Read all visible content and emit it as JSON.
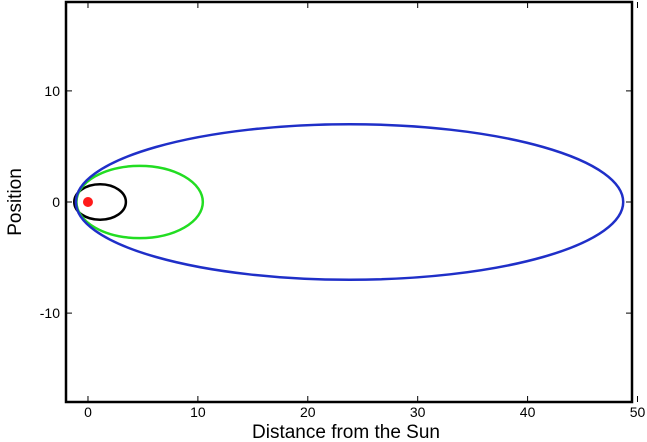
{
  "chart_data": {
    "type": "line",
    "title": "",
    "xlabel": "Distance from the Sun",
    "ylabel": "Position",
    "xlim": [
      -2,
      49.5
    ],
    "ylim": [
      -18,
      18
    ],
    "x_ticks": [
      0,
      10,
      20,
      30,
      40,
      50
    ],
    "y_ticks": [
      -10,
      0,
      10
    ],
    "grid": false,
    "sun": {
      "x": 0,
      "y": 0,
      "color": "#ff1a1a"
    },
    "series": [
      {
        "kind": "ellipse",
        "center_x": 1.1,
        "center_y": 0,
        "semi_axis_x": 2.35,
        "semi_axis_y": 1.6,
        "color": "#000000"
      },
      {
        "kind": "ellipse",
        "center_x": 4.7,
        "center_y": 0,
        "semi_axis_x": 5.75,
        "semi_axis_y": 3.25,
        "color": "#22dd22"
      },
      {
        "kind": "ellipse",
        "center_x": 23.8,
        "center_y": 0,
        "semi_axis_x": 24.9,
        "semi_axis_y": 7.0,
        "color": "#1f2fc8"
      }
    ]
  }
}
